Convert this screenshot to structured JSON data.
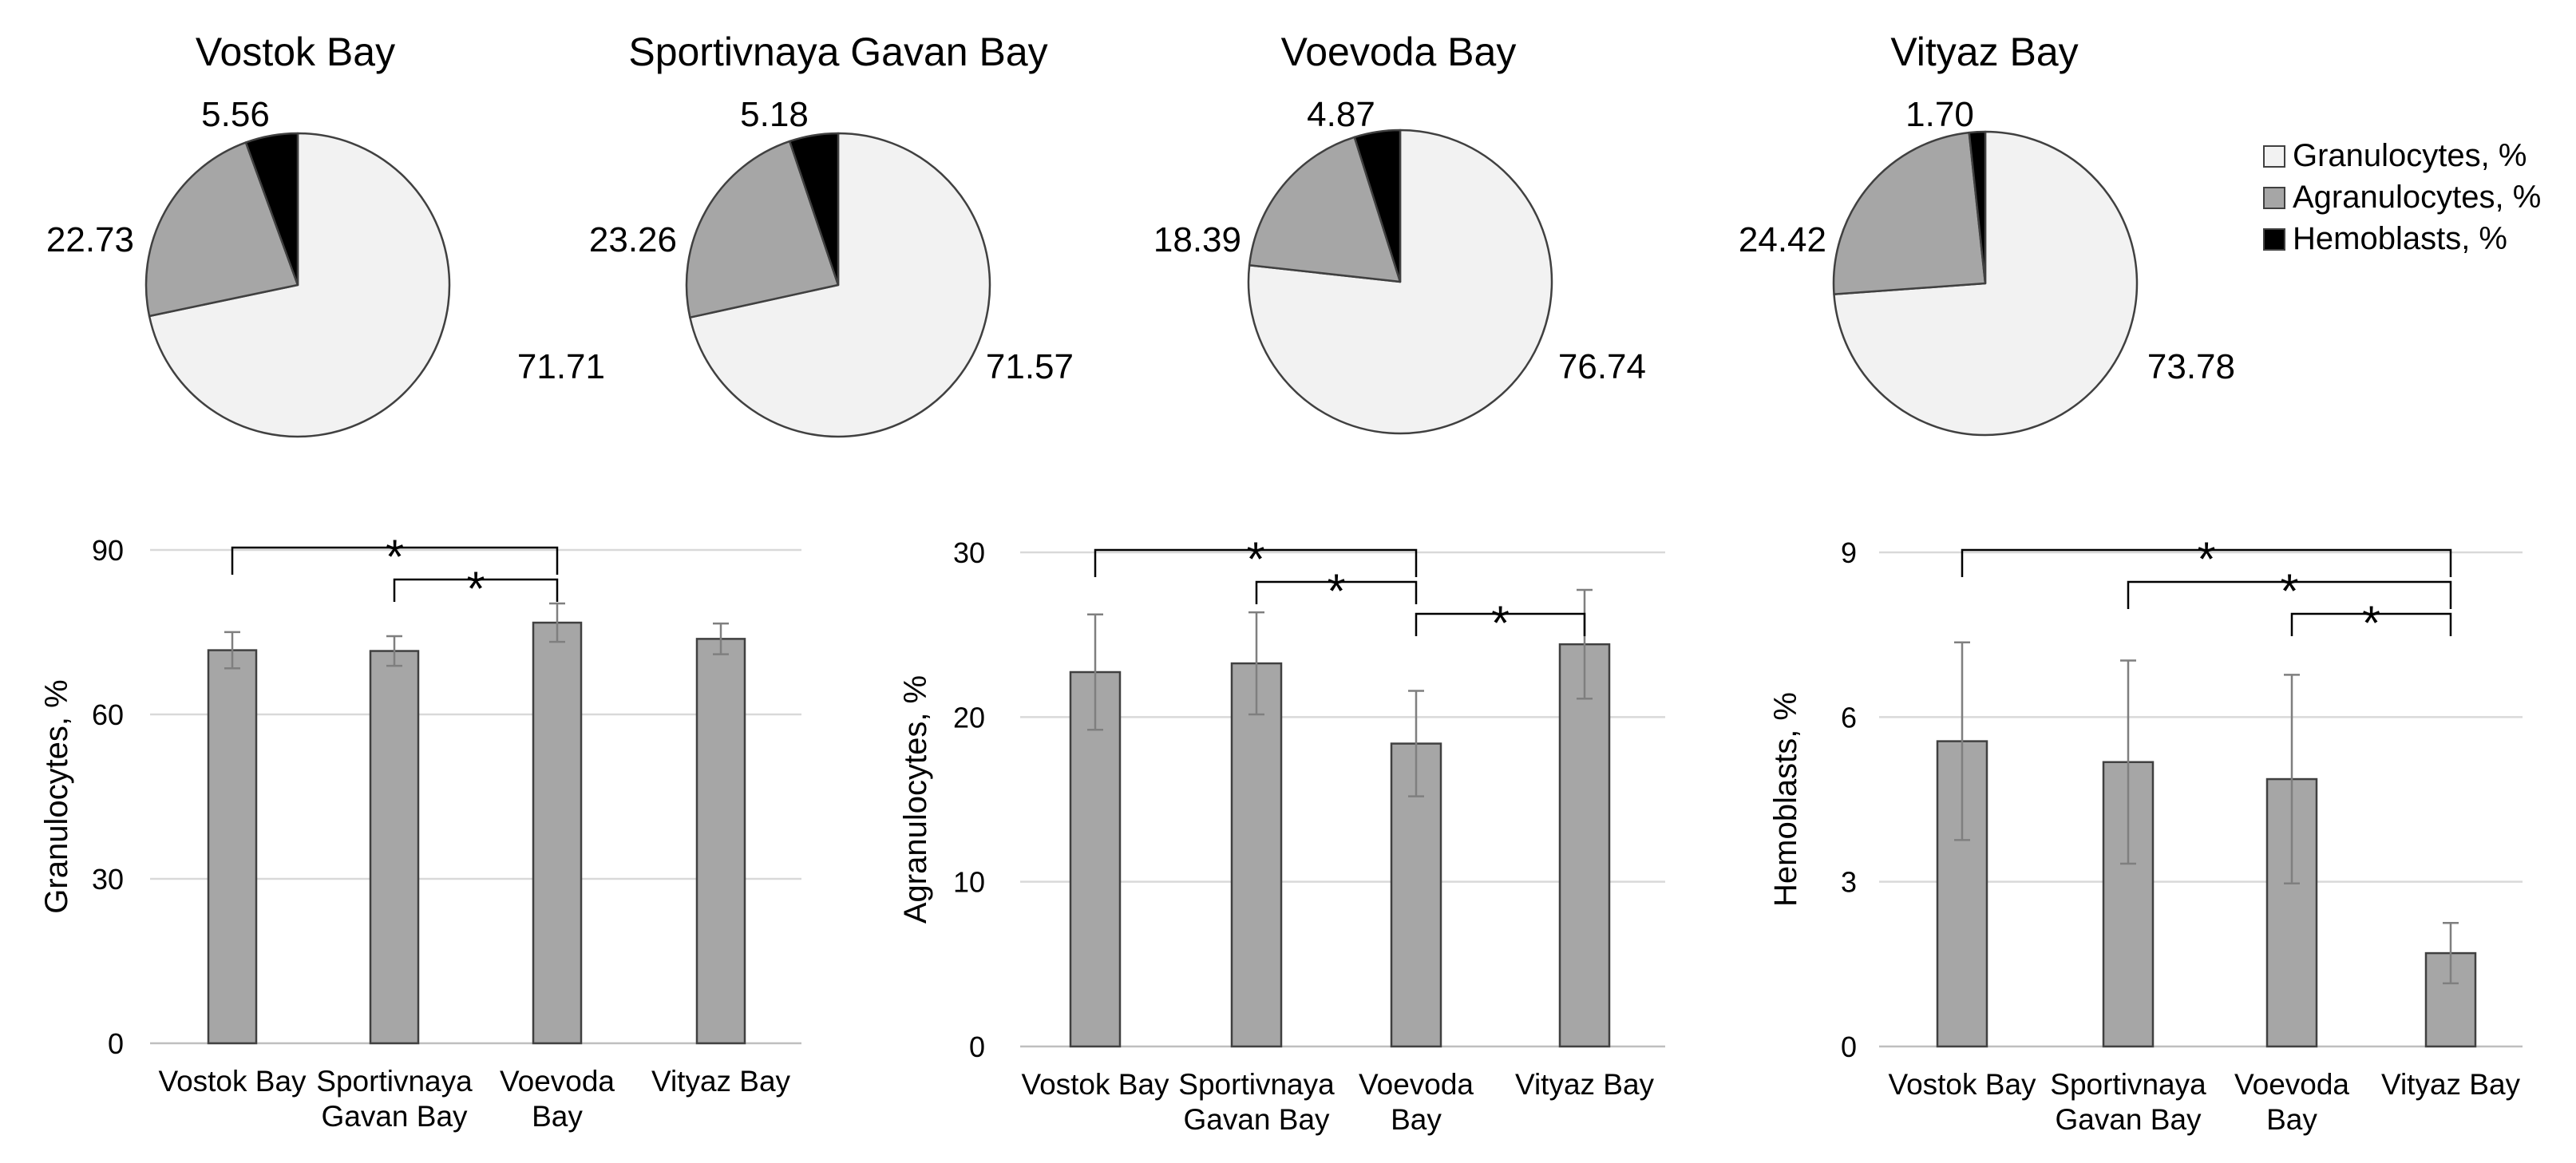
{
  "colors": {
    "granulocytes": "#f2f2f2",
    "agranulocytes": "#a6a6a6",
    "hemoblasts": "#000000",
    "bar": "#a6a6a6",
    "grid": "#d9d9d9",
    "error": "#7f7f7f"
  },
  "legend": {
    "position": "top-right",
    "items": [
      "Granulocytes, %",
      "Agranulocytes, %",
      "Hemoblasts, %"
    ]
  },
  "chart_data": [
    {
      "type": "pie",
      "title": "Vostok Bay",
      "labels": [
        "Granulocytes, %",
        "Agranulocytes, %",
        "Hemoblasts, %"
      ],
      "values": [
        71.71,
        22.73,
        5.56
      ],
      "value_labels": [
        "71.71",
        "22.73",
        "5.56"
      ]
    },
    {
      "type": "pie",
      "title": "Sportivnaya Gavan Bay",
      "labels": [
        "Granulocytes, %",
        "Agranulocytes, %",
        "Hemoblasts, %"
      ],
      "values": [
        71.57,
        23.26,
        5.18
      ],
      "value_labels": [
        "71.57",
        "23.26",
        "5.18"
      ]
    },
    {
      "type": "pie",
      "title": "Voevoda Bay",
      "labels": [
        "Granulocytes, %",
        "Agranulocytes, %",
        "Hemoblasts, %"
      ],
      "values": [
        76.74,
        18.39,
        4.87
      ],
      "value_labels": [
        "76.74",
        "18.39",
        "4.87"
      ]
    },
    {
      "type": "pie",
      "title": "Vityaz Bay",
      "labels": [
        "Granulocytes, %",
        "Agranulocytes, %",
        "Hemoblasts, %"
      ],
      "values": [
        73.78,
        24.42,
        1.7
      ],
      "value_labels": [
        "73.78",
        "24.42",
        "1.70"
      ]
    },
    {
      "type": "bar",
      "ylabel": "Granulocytes, %",
      "ylim": [
        0,
        90
      ],
      "yticks": [
        "0",
        "30",
        "60",
        "90"
      ],
      "grid": true,
      "categories": [
        [
          "Vostok Bay"
        ],
        [
          "Sportivnaya",
          "Gavan Bay"
        ],
        [
          "Voevoda",
          "Bay"
        ],
        [
          "Vityaz Bay"
        ]
      ],
      "values": [
        71.71,
        71.57,
        76.74,
        73.78
      ],
      "errors": [
        3.3,
        2.7,
        3.5,
        2.8
      ],
      "significance": [
        {
          "from": 0,
          "to": 2,
          "label": "*"
        },
        {
          "from": 1,
          "to": 2,
          "label": "*"
        }
      ]
    },
    {
      "type": "bar",
      "ylabel": "Agranulocytes, %",
      "ylim": [
        0,
        30
      ],
      "yticks": [
        "0",
        "10",
        "20",
        "30"
      ],
      "grid": true,
      "categories": [
        [
          "Vostok Bay"
        ],
        [
          "Sportivnaya",
          "Gavan Bay"
        ],
        [
          "Voevoda",
          "Bay"
        ],
        [
          "Vityaz Bay"
        ]
      ],
      "values": [
        22.73,
        23.26,
        18.39,
        24.42
      ],
      "errors": [
        3.5,
        3.1,
        3.2,
        3.3
      ],
      "significance": [
        {
          "from": 0,
          "to": 2,
          "label": "*"
        },
        {
          "from": 1,
          "to": 2,
          "label": "*"
        },
        {
          "from": 2,
          "to": 3,
          "label": "*"
        }
      ]
    },
    {
      "type": "bar",
      "ylabel": "Hemoblasts, %",
      "ylim": [
        0,
        9
      ],
      "yticks": [
        "0",
        "3",
        "6",
        "9"
      ],
      "grid": true,
      "categories": [
        [
          "Vostok Bay"
        ],
        [
          "Sportivnaya",
          "Gavan Bay"
        ],
        [
          "Voevoda",
          "Bay"
        ],
        [
          "Vityaz Bay"
        ]
      ],
      "values": [
        5.56,
        5.18,
        4.87,
        1.7
      ],
      "errors": [
        1.8,
        1.85,
        1.9,
        0.55
      ],
      "significance": [
        {
          "from": 0,
          "to": 3,
          "label": "*"
        },
        {
          "from": 1,
          "to": 3,
          "label": "*"
        },
        {
          "from": 2,
          "to": 3,
          "label": "*"
        }
      ]
    }
  ]
}
